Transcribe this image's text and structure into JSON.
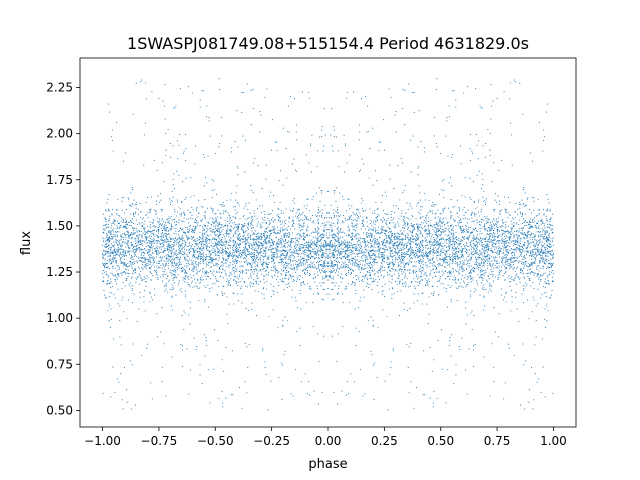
{
  "chart_data": {
    "type": "scatter",
    "title": "1SWASPJ081749.08+515154.4 Period 4631829.0s",
    "xlabel": "phase",
    "ylabel": "flux",
    "xlim": [
      -1.1,
      1.1
    ],
    "ylim": [
      0.41,
      2.41
    ],
    "x_ticks": [
      -1.0,
      -0.75,
      -0.5,
      -0.25,
      0.0,
      0.25,
      0.5,
      0.75,
      1.0
    ],
    "x_tick_labels": [
      "−1.00",
      "−0.75",
      "−0.50",
      "−0.25",
      "0.00",
      "0.25",
      "0.50",
      "0.75",
      "1.00"
    ],
    "y_ticks": [
      0.5,
      0.75,
      1.0,
      1.25,
      1.5,
      1.75,
      2.0,
      2.25
    ],
    "y_tick_labels": [
      "0.50",
      "0.75",
      "1.00",
      "1.25",
      "1.50",
      "1.75",
      "2.00",
      "2.25"
    ],
    "grid": false,
    "marker_color": "#1f77b4",
    "phase_range": [
      -1.0,
      1.0
    ],
    "flux_core_range": [
      1.2,
      1.6
    ],
    "flux_median": 1.38,
    "flux_extreme_range": [
      0.5,
      2.3
    ],
    "symmetric_about_phase": 0.0
  }
}
